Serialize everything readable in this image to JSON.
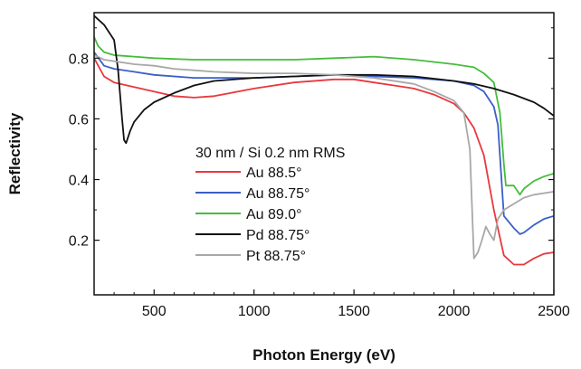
{
  "chart_data": {
    "type": "line",
    "title": "",
    "xlabel": "Photon Energy (eV)",
    "ylabel": "Reflectivity",
    "xlim": [
      200,
      2500
    ],
    "ylim": [
      0.02,
      0.95
    ],
    "xticks": [
      500,
      1000,
      1500,
      2000,
      2500
    ],
    "yticks": [
      0.2,
      0.4,
      0.6,
      0.8
    ],
    "grid": false,
    "legend": {
      "title": "30 nm / Si 0.2 nm RMS",
      "placement": "center"
    },
    "series": [
      {
        "name": "Au 88.5°",
        "color": "#e8383d",
        "x": [
          200,
          250,
          300,
          400,
          500,
          600,
          700,
          800,
          1000,
          1200,
          1400,
          1500,
          1600,
          1700,
          1800,
          1900,
          2000,
          2050,
          2100,
          2150,
          2200,
          2250,
          2300,
          2350,
          2400,
          2450,
          2500
        ],
        "y": [
          0.8,
          0.74,
          0.72,
          0.705,
          0.69,
          0.675,
          0.67,
          0.675,
          0.7,
          0.72,
          0.73,
          0.73,
          0.72,
          0.71,
          0.7,
          0.68,
          0.65,
          0.62,
          0.57,
          0.48,
          0.3,
          0.15,
          0.12,
          0.12,
          0.14,
          0.155,
          0.16
        ]
      },
      {
        "name": "Au 88.75°",
        "color": "#3a5fc8",
        "x": [
          200,
          250,
          300,
          400,
          500,
          700,
          1000,
          1200,
          1400,
          1600,
          1800,
          2000,
          2100,
          2150,
          2200,
          2220,
          2250,
          2300,
          2330,
          2350,
          2400,
          2450,
          2500
        ],
        "y": [
          0.82,
          0.775,
          0.765,
          0.755,
          0.745,
          0.735,
          0.735,
          0.74,
          0.745,
          0.74,
          0.735,
          0.725,
          0.71,
          0.69,
          0.64,
          0.58,
          0.28,
          0.24,
          0.22,
          0.225,
          0.25,
          0.27,
          0.28
        ]
      },
      {
        "name": "Au 89.0°",
        "color": "#45bd3c",
        "x": [
          200,
          220,
          250,
          300,
          400,
          500,
          700,
          1000,
          1200,
          1400,
          1600,
          1800,
          2000,
          2100,
          2150,
          2200,
          2230,
          2250,
          2260,
          2300,
          2330,
          2350,
          2400,
          2450,
          2500
        ],
        "y": [
          0.87,
          0.84,
          0.82,
          0.81,
          0.805,
          0.8,
          0.795,
          0.795,
          0.795,
          0.8,
          0.805,
          0.795,
          0.78,
          0.77,
          0.75,
          0.72,
          0.62,
          0.45,
          0.38,
          0.38,
          0.35,
          0.37,
          0.395,
          0.41,
          0.42
        ]
      },
      {
        "name": "Pd 88.75°",
        "color": "#111111",
        "x": [
          200,
          250,
          300,
          320,
          340,
          350,
          360,
          380,
          400,
          450,
          500,
          600,
          700,
          800,
          1000,
          1200,
          1400,
          1600,
          1800,
          2000,
          2100,
          2200,
          2300,
          2400,
          2450,
          2500
        ],
        "y": [
          0.94,
          0.91,
          0.86,
          0.76,
          0.6,
          0.53,
          0.52,
          0.56,
          0.59,
          0.63,
          0.655,
          0.685,
          0.71,
          0.725,
          0.735,
          0.74,
          0.745,
          0.745,
          0.74,
          0.725,
          0.715,
          0.7,
          0.68,
          0.655,
          0.635,
          0.61
        ]
      },
      {
        "name": "Pt 88.75°",
        "color": "#a8a8a8",
        "x": [
          200,
          250,
          300,
          400,
          500,
          600,
          700,
          800,
          1000,
          1200,
          1400,
          1600,
          1800,
          1900,
          2000,
          2050,
          2080,
          2100,
          2120,
          2140,
          2160,
          2180,
          2200,
          2220,
          2250,
          2300,
          2350,
          2400,
          2450,
          2500
        ],
        "y": [
          0.81,
          0.795,
          0.79,
          0.78,
          0.775,
          0.765,
          0.76,
          0.755,
          0.75,
          0.75,
          0.745,
          0.735,
          0.715,
          0.69,
          0.66,
          0.62,
          0.5,
          0.14,
          0.16,
          0.2,
          0.245,
          0.22,
          0.2,
          0.27,
          0.3,
          0.32,
          0.34,
          0.35,
          0.355,
          0.36
        ]
      }
    ]
  }
}
